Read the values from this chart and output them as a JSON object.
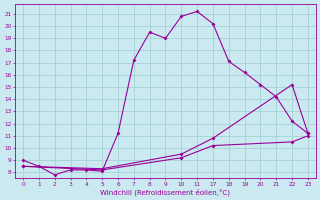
{
  "bg_color": "#cbe9f0",
  "grid_color": "#9ecfcf",
  "line_color": "#990099",
  "xlabel": "Windchill (Refroidissement éolien,°C)",
  "line1_x": [
    0,
    1,
    2,
    3,
    4,
    5,
    6,
    7,
    8,
    9,
    10,
    11,
    12,
    13,
    14,
    15,
    16,
    17,
    18
  ],
  "line1_y": [
    9.0,
    8.5,
    7.8,
    8.2,
    8.2,
    8.1,
    11.2,
    17.2,
    19.5,
    19.0,
    20.8,
    21.2,
    20.2,
    17.1,
    16.2,
    15.2,
    14.2,
    12.2,
    11.2
  ],
  "line2_x": [
    0,
    5,
    10,
    12,
    17,
    18
  ],
  "line2_y": [
    8.5,
    8.2,
    9.2,
    10.2,
    10.5,
    11.0
  ],
  "line3_x": [
    0,
    5,
    10,
    12,
    17,
    18
  ],
  "line3_y": [
    8.5,
    8.3,
    9.5,
    10.8,
    15.2,
    11.2
  ],
  "xtick_positions": [
    0,
    1,
    2,
    3,
    4,
    5,
    6,
    7,
    8,
    9,
    10,
    11,
    12,
    13,
    14,
    15,
    16,
    17,
    18
  ],
  "xtick_labels": [
    "0",
    "1",
    "2",
    "3",
    "4",
    "5",
    "6",
    "7",
    "8",
    "9",
    "10",
    "11",
    "17",
    "18",
    "19",
    "20",
    "21",
    "22",
    "23"
  ],
  "yticks": [
    8,
    9,
    10,
    11,
    12,
    13,
    14,
    15,
    16,
    17,
    18,
    19,
    20,
    21
  ],
  "xlim": [
    -0.5,
    18.5
  ],
  "ylim": [
    7.5,
    21.8
  ]
}
